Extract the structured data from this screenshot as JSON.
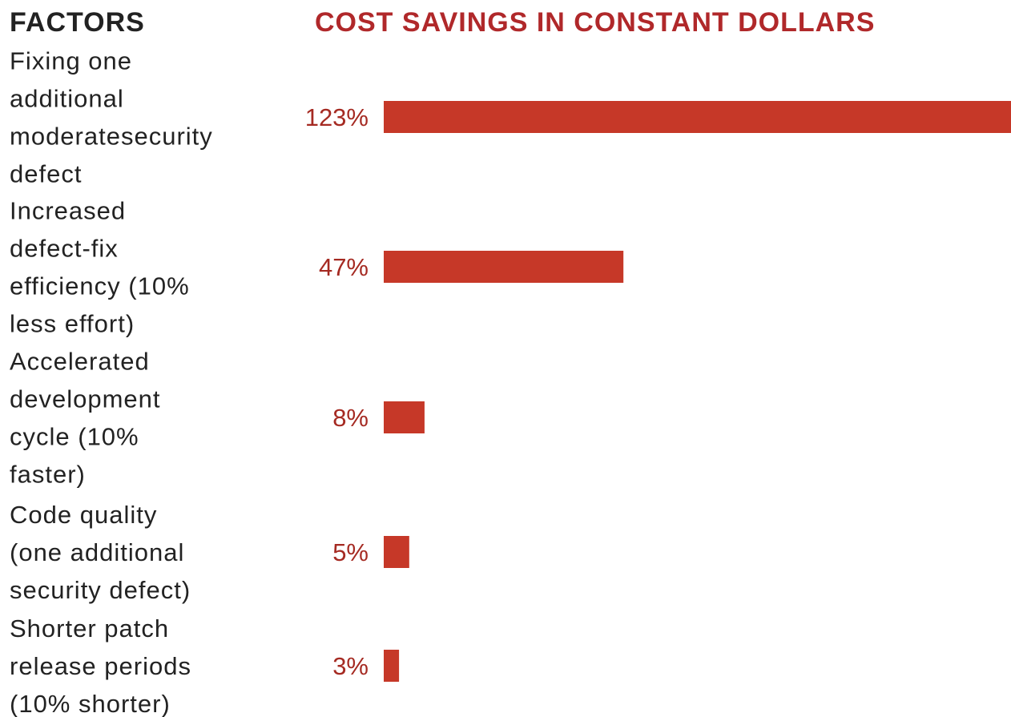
{
  "colors": {
    "bar": "#c63828",
    "value_text": "#a52a22",
    "header_accent": "#b0282a",
    "label_text": "#222222"
  },
  "chart_data": {
    "type": "bar",
    "orientation": "horizontal",
    "category_header": "FACTORS",
    "value_header": "COST SAVINGS IN CONSTANT DOLLARS",
    "unit": "%",
    "categories": [
      [
        "Fixing one",
        "additional",
        "moderatesecurity",
        "defect"
      ],
      [
        "Increased",
        "defect-fix",
        "efficiency (10%",
        "less effort)"
      ],
      [
        "Accelerated",
        "development",
        "cycle (10%",
        "faster)"
      ],
      [
        "Code quality",
        "(one additional",
        "security defect)"
      ],
      [
        "Shorter patch",
        "release periods",
        "(10% shorter)"
      ]
    ],
    "values": [
      123,
      47,
      8,
      5,
      3
    ],
    "value_labels": [
      "123%",
      "47%",
      "8%",
      "5%",
      "3%"
    ],
    "xlim": [
      0,
      123
    ],
    "grid": false,
    "legend": "none"
  }
}
